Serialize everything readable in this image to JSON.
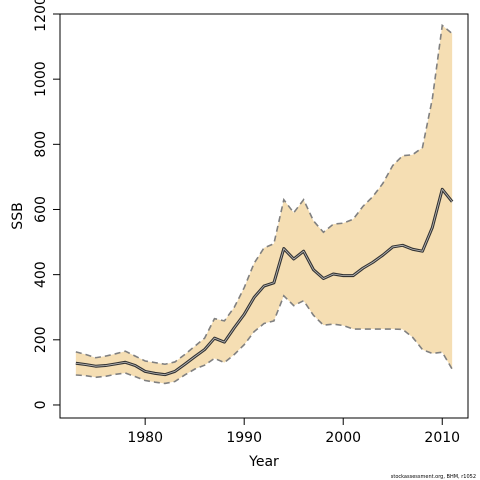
{
  "chart_data": {
    "type": "line",
    "title": "",
    "xlabel": "Year",
    "ylabel": "SSB",
    "xlim": [
      1971.4,
      2012.6
    ],
    "ylim": [
      -40,
      1200
    ],
    "x_ticks": [
      1980,
      1990,
      2000,
      2010
    ],
    "y_ticks": [
      0,
      200,
      400,
      600,
      800,
      1000,
      1200
    ],
    "grid": false,
    "legend": "none",
    "colors": {
      "band": "#f5deb3",
      "bounds": "#808080",
      "estimate": "#333333",
      "estimate_highlight": "#bbbbbb"
    },
    "x": [
      1973,
      1974,
      1975,
      1976,
      1977,
      1978,
      1979,
      1980,
      1981,
      1982,
      1983,
      1984,
      1985,
      1986,
      1987,
      1988,
      1989,
      1990,
      1991,
      1992,
      1993,
      1994,
      1995,
      1996,
      1997,
      1998,
      1999,
      2000,
      2001,
      2002,
      2003,
      2004,
      2005,
      2006,
      2007,
      2008,
      2009,
      2010,
      2011
    ],
    "series": [
      {
        "role": "upper",
        "values": [
          163,
          155,
          145,
          150,
          157,
          165,
          150,
          135,
          130,
          125,
          132,
          155,
          180,
          205,
          265,
          258,
          300,
          360,
          435,
          482,
          495,
          630,
          590,
          630,
          565,
          530,
          555,
          558,
          570,
          610,
          640,
          680,
          735,
          765,
          768,
          790,
          940,
          1165,
          1140
        ]
      },
      {
        "role": "estimate",
        "values": [
          128,
          124,
          119,
          121,
          126,
          131,
          121,
          103,
          97,
          93,
          103,
          125,
          148,
          170,
          205,
          193,
          237,
          278,
          330,
          365,
          375,
          480,
          448,
          472,
          415,
          388,
          402,
          397,
          397,
          420,
          438,
          460,
          485,
          490,
          478,
          472,
          545,
          662,
          624
        ]
      },
      {
        "role": "lower",
        "values": [
          92,
          90,
          85,
          88,
          94,
          98,
          87,
          75,
          70,
          66,
          72,
          92,
          110,
          122,
          143,
          130,
          155,
          185,
          225,
          250,
          258,
          335,
          305,
          320,
          275,
          245,
          248,
          244,
          233,
          233,
          233,
          233,
          233,
          232,
          208,
          170,
          158,
          162,
          110
        ]
      }
    ]
  },
  "credit": "stockassessment.org, BHM, r1052"
}
